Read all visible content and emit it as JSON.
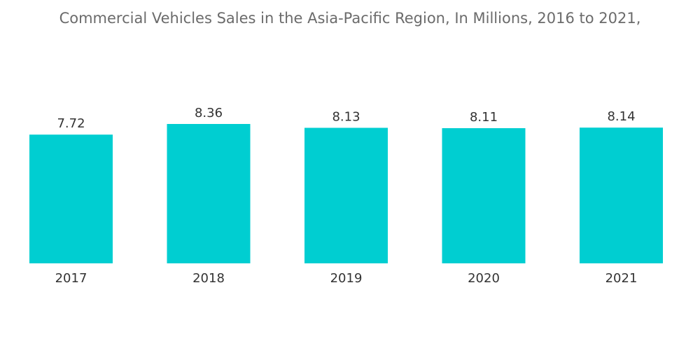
{
  "chart_data": {
    "type": "bar",
    "title": "Commercial Vehicles Sales in the Asia-Pacific Region, In Millions, 2016 to 2021,",
    "categories": [
      "2017",
      "2018",
      "2019",
      "2020",
      "2021"
    ],
    "values": [
      7.72,
      8.36,
      8.13,
      8.11,
      8.14
    ],
    "value_labels": [
      "7.72",
      "8.36",
      "8.13",
      "8.11",
      "8.14"
    ],
    "xlabel": "",
    "ylabel": "",
    "ylim": [
      0,
      8.36
    ],
    "grid": false,
    "legend": "none",
    "bar_color": "#00CED1"
  }
}
